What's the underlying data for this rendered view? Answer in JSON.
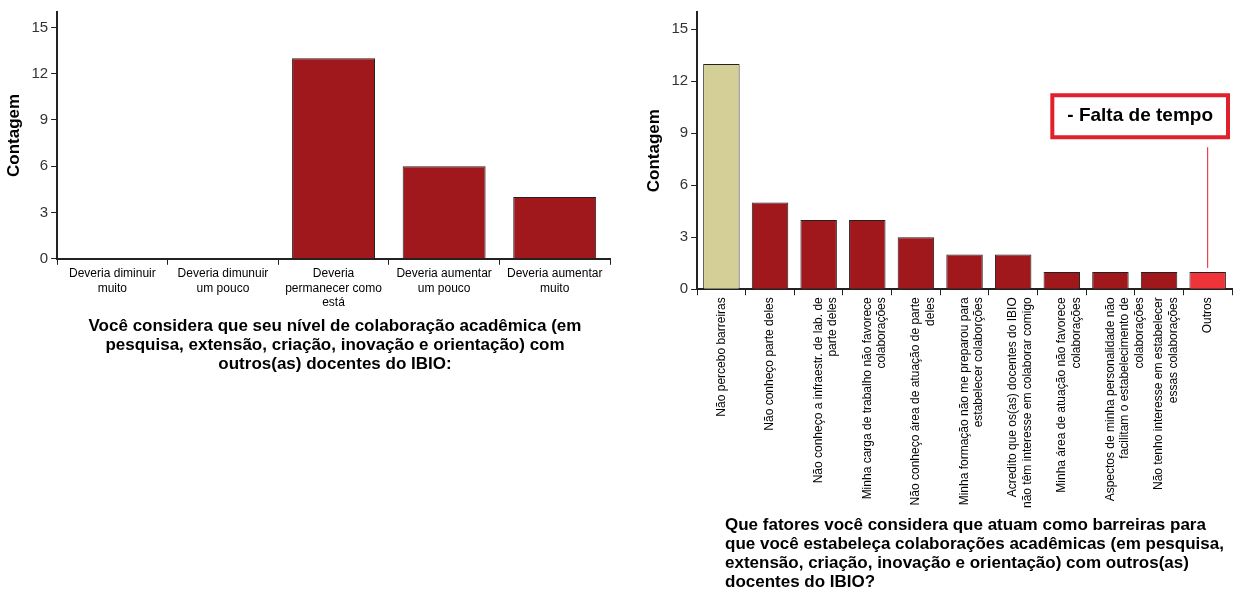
{
  "chart_data": [
    {
      "type": "bar",
      "xlabel": "Você considera que seu nível de colaboração acadêmica (em pesquisa, extensão, criação, inovação e orientação) com outros(as) docentes do IBIO:",
      "ylabel": "Contagem",
      "categories": [
        "Deveria diminuir muito",
        "Deveria dimunuir um pouco",
        "Deveria permanecer como está",
        "Deveria aumentar um pouco",
        "Deveria aumentar muito"
      ],
      "values": [
        0,
        0,
        13,
        6,
        4
      ],
      "color": "#a0171c",
      "ylim": [
        0,
        16
      ],
      "yticks": [
        0,
        3,
        6,
        9,
        12,
        15
      ],
      "grid": false,
      "legend": false
    },
    {
      "type": "bar",
      "xlabel": "Que fatores você considera que atuam como barreiras para que você estabeleça colaborações acadêmicas (em pesquisa, extensão, criação, inovação e orientação) com outros(as) docentes do IBIO?",
      "ylabel": "Contagem",
      "categories": [
        "Não percebo barreiras",
        "Não conheço parte deles",
        "Não conheço a infraestr. de lab. de parte deles",
        "Minha carga de trabalho não favorece colaborações",
        "Não conheço área de atuação de parte deles",
        "Minha formação não me preparou para estabelecer colaborções",
        "Acredito que os(as) docentes do IBIO não têm interesse em colaborar comigo",
        "Minha área de atuação não favorece colaborações",
        "Aspectos de minha personalidade não facilitam o estabelecimento de colaborações",
        "Não tenho interesse em estabelecer essas colaborações",
        "Outros"
      ],
      "values": [
        13,
        5,
        4,
        4,
        3,
        2,
        2,
        1,
        1,
        1,
        1
      ],
      "colors": [
        "#d4cf96",
        "#a0171c",
        "#a0171c",
        "#a0171c",
        "#a0171c",
        "#a0171c",
        "#a0171c",
        "#a0171c",
        "#a0171c",
        "#a0171c",
        "#ee3339"
      ],
      "ylim": [
        0,
        16
      ],
      "yticks": [
        0,
        3,
        6,
        9,
        12,
        15
      ],
      "grid": false,
      "legend": false,
      "annotations": [
        "- Falta de tempo"
      ]
    }
  ]
}
